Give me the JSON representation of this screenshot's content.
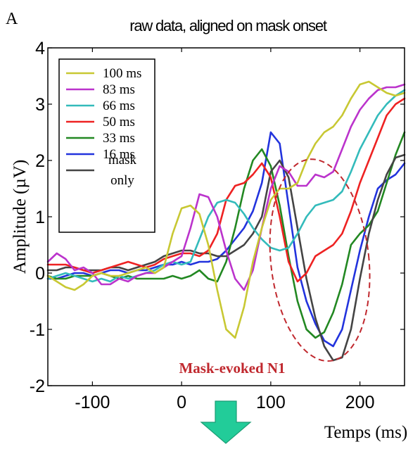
{
  "panel_letter": "A",
  "chart_data": {
    "type": "line",
    "title": "raw data, aligned on mask onset",
    "xlabel": "Temps (ms)",
    "ylabel": "Amplitude (µV)",
    "xlim": [
      -150,
      250
    ],
    "ylim": [
      -2,
      4
    ],
    "x_ticks": [
      -100,
      0,
      100,
      200
    ],
    "y_ticks": [
      -2,
      -1,
      0,
      1,
      2,
      3,
      4
    ],
    "x_tick_labels": [
      "-100",
      "0",
      "100",
      "200"
    ],
    "y_tick_labels": [
      "-2",
      "-1",
      "0",
      "1",
      "2",
      "3",
      "4"
    ],
    "grid": false,
    "legend_position": "top-left",
    "annotation": {
      "text": "Mask-evoked N1",
      "color": "#c0282e",
      "ellipse_center": [
        155,
        0.23
      ],
      "ellipse_radius": [
        55,
        1.8
      ]
    },
    "series": [
      {
        "name": "100 ms",
        "color": "#c8c833",
        "x": [
          -150,
          -140,
          -130,
          -120,
          -110,
          -100,
          -90,
          -80,
          -70,
          -60,
          -50,
          -40,
          -30,
          -20,
          -10,
          0,
          10,
          20,
          30,
          40,
          50,
          60,
          70,
          80,
          90,
          100,
          110,
          120,
          130,
          140,
          150,
          160,
          170,
          180,
          190,
          200,
          210,
          220,
          230,
          240,
          250
        ],
        "y": [
          -0.05,
          -0.15,
          -0.25,
          -0.3,
          -0.2,
          -0.05,
          0.0,
          -0.05,
          -0.05,
          0.0,
          0.05,
          0.1,
          0.0,
          0.1,
          0.7,
          1.15,
          1.2,
          1.05,
          0.5,
          -0.3,
          -1.0,
          -1.15,
          -0.6,
          0.2,
          0.8,
          1.3,
          1.5,
          1.5,
          1.6,
          2.0,
          2.3,
          2.5,
          2.6,
          2.8,
          3.1,
          3.35,
          3.4,
          3.3,
          3.2,
          3.15,
          3.2
        ]
      },
      {
        "name": "83 ms",
        "color": "#bb33cc",
        "x": [
          -150,
          -140,
          -130,
          -120,
          -110,
          -100,
          -90,
          -80,
          -70,
          -60,
          -50,
          -40,
          -30,
          -20,
          -10,
          0,
          10,
          20,
          30,
          40,
          50,
          60,
          70,
          80,
          90,
          100,
          110,
          120,
          130,
          140,
          150,
          160,
          170,
          180,
          190,
          200,
          210,
          220,
          230,
          240,
          250
        ],
        "y": [
          0.2,
          0.35,
          0.25,
          0.05,
          0.1,
          0.0,
          -0.2,
          -0.2,
          -0.1,
          -0.15,
          -0.05,
          0.0,
          0.0,
          0.1,
          0.2,
          0.3,
          0.8,
          1.4,
          1.35,
          1.0,
          0.4,
          -0.1,
          -0.3,
          0.05,
          0.8,
          1.5,
          1.9,
          1.8,
          1.55,
          1.55,
          1.75,
          1.7,
          1.8,
          2.2,
          2.6,
          2.9,
          3.1,
          3.25,
          3.3,
          3.3,
          3.35
        ]
      },
      {
        "name": "66 ms",
        "color": "#33bbbb",
        "x": [
          -150,
          -140,
          -130,
          -120,
          -110,
          -100,
          -90,
          -80,
          -70,
          -60,
          -50,
          -40,
          -30,
          -20,
          -10,
          0,
          10,
          20,
          30,
          40,
          50,
          60,
          70,
          80,
          90,
          100,
          110,
          120,
          130,
          140,
          150,
          160,
          170,
          180,
          190,
          200,
          210,
          220,
          230,
          240,
          250
        ],
        "y": [
          -0.1,
          -0.05,
          0.0,
          -0.05,
          -0.1,
          -0.15,
          -0.1,
          -0.15,
          -0.05,
          -0.1,
          -0.05,
          0.0,
          0.05,
          0.15,
          0.2,
          0.15,
          0.2,
          0.6,
          1.0,
          1.25,
          1.3,
          1.25,
          1.05,
          0.8,
          0.6,
          0.45,
          0.4,
          0.45,
          0.7,
          1.0,
          1.2,
          1.25,
          1.3,
          1.45,
          1.8,
          2.2,
          2.5,
          2.8,
          3.0,
          3.15,
          3.25
        ]
      },
      {
        "name": "50 ms",
        "color": "#ee2222",
        "x": [
          -150,
          -140,
          -130,
          -120,
          -110,
          -100,
          -90,
          -80,
          -70,
          -60,
          -50,
          -40,
          -30,
          -20,
          -10,
          0,
          10,
          20,
          30,
          40,
          50,
          60,
          70,
          80,
          90,
          100,
          110,
          120,
          130,
          140,
          150,
          160,
          170,
          180,
          190,
          200,
          210,
          220,
          230,
          240,
          250
        ],
        "y": [
          0.15,
          0.15,
          0.15,
          0.1,
          0.05,
          0.0,
          0.05,
          0.1,
          0.15,
          0.2,
          0.15,
          0.1,
          0.15,
          0.25,
          0.3,
          0.35,
          0.35,
          0.3,
          0.4,
          0.7,
          1.3,
          1.55,
          1.6,
          1.75,
          1.95,
          1.7,
          1.0,
          0.2,
          -0.15,
          0.0,
          0.3,
          0.4,
          0.5,
          0.7,
          1.1,
          1.6,
          2.0,
          2.4,
          2.8,
          3.0,
          3.1
        ]
      },
      {
        "name": "33 ms",
        "color": "#228822",
        "x": [
          -150,
          -140,
          -130,
          -120,
          -110,
          -100,
          -90,
          -80,
          -70,
          -60,
          -50,
          -40,
          -30,
          -20,
          -10,
          0,
          10,
          20,
          30,
          40,
          50,
          60,
          70,
          80,
          90,
          100,
          110,
          120,
          130,
          140,
          150,
          160,
          170,
          180,
          190,
          200,
          210,
          220,
          230,
          240,
          250
        ],
        "y": [
          -0.05,
          -0.1,
          -0.1,
          -0.05,
          -0.05,
          -0.05,
          0.0,
          -0.05,
          -0.1,
          -0.05,
          -0.1,
          -0.1,
          -0.1,
          -0.1,
          -0.05,
          -0.1,
          -0.05,
          0.05,
          -0.1,
          -0.15,
          0.2,
          0.8,
          1.5,
          2.0,
          2.2,
          1.9,
          1.2,
          0.3,
          -0.5,
          -1.0,
          -1.15,
          -1.05,
          -0.7,
          -0.2,
          0.5,
          0.7,
          0.85,
          1.1,
          1.6,
          2.1,
          2.5
        ]
      },
      {
        "name": "16 ms",
        "color": "#2233dd",
        "x": [
          -150,
          -140,
          -130,
          -120,
          -110,
          -100,
          -90,
          -80,
          -70,
          -60,
          -50,
          -40,
          -30,
          -20,
          -10,
          0,
          10,
          20,
          30,
          40,
          50,
          60,
          70,
          80,
          90,
          100,
          110,
          120,
          130,
          140,
          150,
          160,
          170,
          180,
          190,
          200,
          210,
          220,
          230,
          240,
          250
        ],
        "y": [
          -0.1,
          -0.1,
          -0.05,
          0.0,
          0.0,
          -0.05,
          0.0,
          0.05,
          0.05,
          0.0,
          0.05,
          0.05,
          0.1,
          0.15,
          0.15,
          0.2,
          0.15,
          0.2,
          0.2,
          0.25,
          0.4,
          0.6,
          0.8,
          1.1,
          1.6,
          2.5,
          2.3,
          1.2,
          0.1,
          -0.5,
          -0.9,
          -1.2,
          -1.3,
          -1.0,
          -0.3,
          0.4,
          1.0,
          1.5,
          1.65,
          1.75,
          1.95
        ]
      },
      {
        "name": "mask only",
        "color": "#444444",
        "x": [
          -150,
          -140,
          -130,
          -120,
          -110,
          -100,
          -90,
          -80,
          -70,
          -60,
          -50,
          -40,
          -30,
          -20,
          -10,
          0,
          10,
          20,
          30,
          40,
          50,
          60,
          70,
          80,
          90,
          100,
          110,
          120,
          130,
          140,
          150,
          160,
          170,
          180,
          190,
          200,
          210,
          220,
          230,
          240,
          250
        ],
        "y": [
          0.05,
          0.05,
          0.1,
          0.1,
          0.05,
          0.05,
          0.05,
          0.1,
          0.1,
          0.05,
          0.1,
          0.15,
          0.2,
          0.3,
          0.35,
          0.4,
          0.4,
          0.35,
          0.35,
          0.3,
          0.3,
          0.4,
          0.5,
          0.7,
          1.0,
          1.8,
          2.0,
          1.7,
          0.8,
          -0.1,
          -0.8,
          -1.3,
          -1.55,
          -1.5,
          -1.0,
          -0.1,
          0.7,
          1.3,
          1.75,
          2.05,
          2.1
        ]
      }
    ]
  }
}
